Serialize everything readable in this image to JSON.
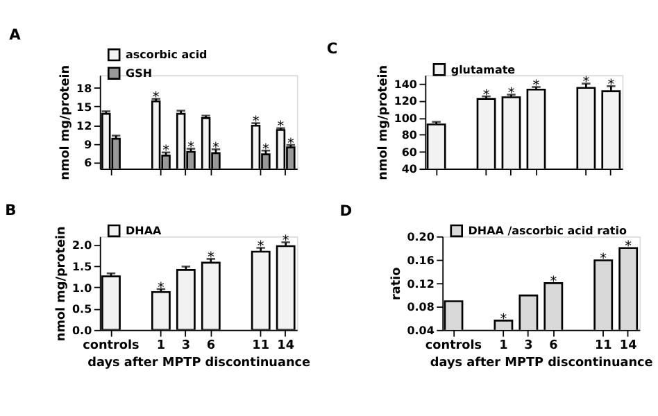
{
  "chart_data": [
    {
      "type": "bar",
      "title": "A",
      "ylabel": "nmol  mg/protein",
      "categories": [
        null,
        null,
        null,
        null,
        null,
        null
      ],
      "ylim": [
        5,
        20
      ],
      "yticks": [
        6,
        9,
        12,
        15,
        18
      ],
      "tick_labels": "y",
      "legend": "top left",
      "grid": false,
      "series": [
        {
          "name": "ascorbic acid",
          "color": "#f2f2f2",
          "values": [
            13.8,
            15.8,
            13.8,
            13.1,
            11.9,
            11.2
          ],
          "errors": [
            0.4,
            0.4,
            0.5,
            0.4,
            0.4,
            0.3
          ]
        },
        {
          "name": "GSH",
          "color": "#999999",
          "values": [
            9.8,
            7.1,
            7.7,
            7.5,
            7.3,
            8.4
          ],
          "errors": [
            0.5,
            0.5,
            0.5,
            0.6,
            0.6,
            0.4
          ]
        }
      ],
      "annotations": [
        {
          "text": "*",
          "y": 15.8
        },
        {
          "text": "*",
          "y": 11.9
        },
        {
          "text": "*",
          "y": 11.2
        },
        {
          "text": "*",
          "y": 7.1
        },
        {
          "text": "*",
          "y": 7.7
        },
        {
          "text": "*",
          "y": 7.5
        },
        {
          "text": "*",
          "y": 7.3
        },
        {
          "text": "*",
          "y": 8.4
        }
      ]
    },
    {
      "type": "bar",
      "title": "C",
      "ylabel": "nmol  mg/protein",
      "categories": [
        null,
        null,
        null,
        null,
        null,
        null
      ],
      "ylim": [
        40,
        150
      ],
      "yticks": [
        40,
        60,
        80,
        100,
        120,
        140
      ],
      "tick_labels": "y",
      "legend": "top left",
      "grid": false,
      "series": [
        {
          "name": "glutamate",
          "color": "#f2f2f2",
          "values": [
            92,
            122,
            124,
            133,
            135,
            131
          ],
          "errors": [
            3,
            3,
            3,
            3,
            5,
            6
          ]
        }
      ],
      "annotations": [
        {
          "text": "*",
          "y": 122
        },
        {
          "text": "*",
          "y": 124
        },
        {
          "text": "*",
          "y": 133
        },
        {
          "text": "*",
          "y": 135
        },
        {
          "text": "*",
          "y": 131
        }
      ]
    },
    {
      "type": "bar",
      "title": "B",
      "ylabel": "nmol  mg/protein",
      "xlabel": "days after MPTP discontinuance",
      "categories": [
        "controls",
        "1",
        "3",
        "6",
        "11",
        "14"
      ],
      "ylim": [
        0,
        2.2
      ],
      "yticks": [
        {
          "value": 0,
          "label": "0.0"
        },
        0.5,
        {
          "value": 1,
          "label": "1.0"
        },
        1.5,
        {
          "value": 2,
          "label": "2.0"
        }
      ],
      "legend": "top left",
      "grid": false,
      "series": [
        {
          "name": "DHAA",
          "color": "#f2f2f2",
          "values": [
            1.26,
            0.89,
            1.41,
            1.58,
            1.84,
            1.97
          ],
          "errors": [
            0.07,
            0.07,
            0.08,
            0.09,
            0.09,
            0.09
          ]
        }
      ],
      "annotations": [
        {
          "text": "*",
          "x": "1",
          "y": 0.89
        },
        {
          "text": "*",
          "x": "6",
          "y": 1.58
        },
        {
          "text": "*",
          "x": "11",
          "y": 1.84
        },
        {
          "text": "*",
          "x": "14",
          "y": 1.97
        }
      ]
    },
    {
      "type": "bar",
      "title": "D",
      "ylabel": "ratio",
      "xlabel": "days after MPTP discontinuance",
      "categories": [
        "controls",
        "1",
        "3",
        "6",
        "11",
        "14"
      ],
      "ylim": [
        0.04,
        0.2
      ],
      "yticks": [
        0.04,
        0.08,
        0.12,
        0.16,
        {
          "value": 0.2,
          "label": "0.20"
        }
      ],
      "legend": "top left",
      "grid": false,
      "series": [
        {
          "name": "DHAA /ascorbic acid ratio",
          "color": "#d9d9d9",
          "values": [
            0.089,
            0.056,
            0.099,
            0.12,
            0.159,
            0.18
          ]
        }
      ],
      "annotations": [
        {
          "text": "*",
          "x": "1",
          "y": 0.056
        },
        {
          "text": "*",
          "x": "6",
          "y": 0.12
        },
        {
          "text": "*",
          "x": "11",
          "y": 0.159
        },
        {
          "text": "*",
          "x": "14",
          "y": 0.18
        }
      ]
    }
  ]
}
